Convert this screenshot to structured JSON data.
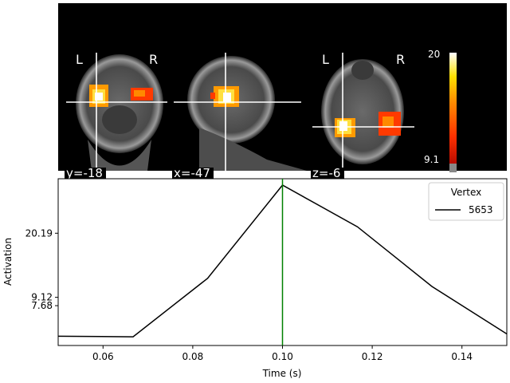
{
  "chart_data": [
    {
      "type": "image",
      "panel": "brain-slices",
      "views": [
        {
          "coord_label": "y=-18",
          "left_letter": "L",
          "right_letter": "R"
        },
        {
          "coord_label": "x=-47"
        },
        {
          "coord_label": "z=-6",
          "left_letter": "L",
          "right_letter": "R"
        }
      ],
      "colorbar": {
        "min_label": "9.1",
        "max_label": "20",
        "min": 9.1,
        "max": 20
      },
      "colors": {
        "background": "#000000",
        "crosshair": "#ffffff"
      }
    },
    {
      "type": "line",
      "xlabel": "Time (s)",
      "ylabel": "Activation",
      "xlim": [
        0.05,
        0.15
      ],
      "ylim": [
        0.8,
        29.6
      ],
      "x_ticks": [
        0.06,
        0.08,
        0.1,
        0.12,
        0.14
      ],
      "x_tick_labels": [
        "0.06",
        "0.08",
        "0.10",
        "0.12",
        "0.14"
      ],
      "y_ticks": [
        7.68,
        9.12,
        20.19
      ],
      "y_tick_labels": [
        "7.68",
        "9.12",
        "20.19"
      ],
      "legend": {
        "title": "Vertex",
        "position": "top-right"
      },
      "series": [
        {
          "name": "5653",
          "color": "#000000",
          "x": [
            0.05,
            0.0667,
            0.0833,
            0.1,
            0.1167,
            0.1333,
            0.15
          ],
          "y": [
            2.4,
            2.3,
            12.4,
            28.5,
            21.3,
            11.0,
            2.8
          ]
        }
      ],
      "vline": {
        "x": 0.1,
        "color": "#008000"
      }
    }
  ]
}
